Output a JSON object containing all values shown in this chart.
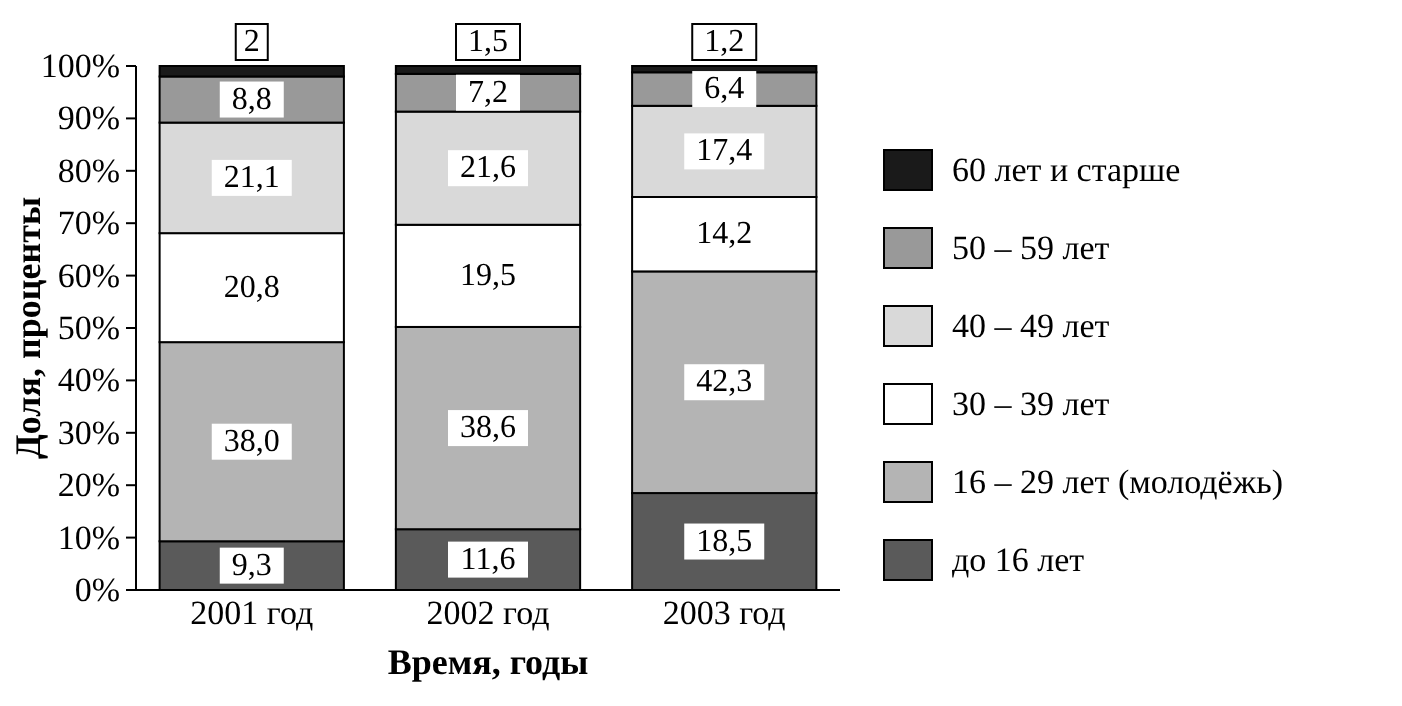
{
  "chart_data": {
    "type": "bar",
    "stacked": true,
    "xlabel": "Время, годы",
    "ylabel": "Доля, проценты",
    "categories": [
      "2001 год",
      "2002 год",
      "2003 год"
    ],
    "ylim": [
      0,
      100
    ],
    "yticks": [
      {
        "value": 0,
        "label": "0%"
      },
      {
        "value": 10,
        "label": "10%"
      },
      {
        "value": 20,
        "label": "20%"
      },
      {
        "value": 30,
        "label": "30%"
      },
      {
        "value": 40,
        "label": "40%"
      },
      {
        "value": 50,
        "label": "50%"
      },
      {
        "value": 60,
        "label": "60%"
      },
      {
        "value": 70,
        "label": "70%"
      },
      {
        "value": 80,
        "label": "80%"
      },
      {
        "value": 90,
        "label": "90%"
      },
      {
        "value": 100,
        "label": "100%"
      }
    ],
    "legend": "right",
    "grid": false,
    "series": [
      {
        "name": "до 16 лет",
        "color": "#5a5a5a",
        "values": [
          9.3,
          11.6,
          18.5
        ],
        "value_labels": [
          "9,3",
          "11,6",
          "18,5"
        ]
      },
      {
        "name": "16 – 29 лет (молодёжь)",
        "color": "#b4b4b4",
        "values": [
          38.0,
          38.6,
          42.3
        ],
        "value_labels": [
          "38,0",
          "38,6",
          "42,3"
        ]
      },
      {
        "name": "30 – 39 лет",
        "color": "#ffffff",
        "values": [
          20.8,
          19.5,
          14.2
        ],
        "value_labels": [
          "20,8",
          "19,5",
          "14,2"
        ]
      },
      {
        "name": "40 – 49 лет",
        "color": "#d9d9d9",
        "values": [
          21.1,
          21.6,
          17.4
        ],
        "value_labels": [
          "21,1",
          "21,6",
          "17,4"
        ]
      },
      {
        "name": "50 – 59 лет",
        "color": "#999999",
        "values": [
          8.8,
          7.2,
          6.4
        ],
        "value_labels": [
          "8,8",
          "7,2",
          "6,4"
        ]
      },
      {
        "name": "60 лет и старше",
        "color": "#1a1a1a",
        "values": [
          2,
          1.5,
          1.2
        ],
        "value_labels": [
          "2",
          "1,5",
          "1,2"
        ]
      }
    ]
  }
}
